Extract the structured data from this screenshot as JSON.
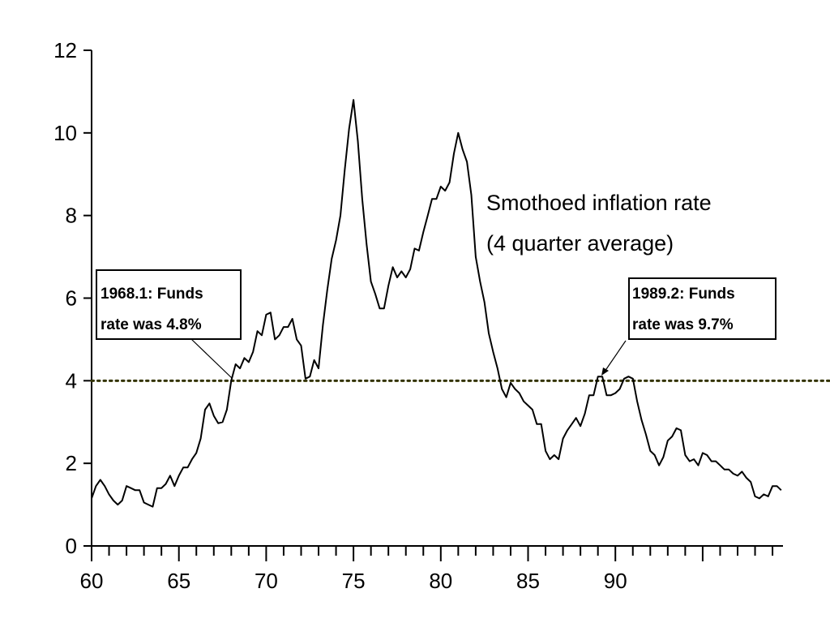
{
  "chart_data": {
    "type": "line",
    "title": "",
    "xlabel": "",
    "ylabel": "",
    "xlim": [
      60,
      99.6
    ],
    "ylim": [
      0,
      12
    ],
    "grid": false,
    "x_ticks": [
      60,
      65,
      70,
      75,
      80,
      85,
      90
    ],
    "y_ticks": [
      0,
      2,
      4,
      6,
      8,
      10,
      12
    ],
    "reference_line": {
      "y": 4,
      "style": "dotted",
      "color": "#333300"
    },
    "series": [
      {
        "name": "Smothoed inflation rate (4 quarter average)",
        "color": "#000000",
        "x": [
          60.0,
          60.25,
          60.5,
          60.75,
          61.0,
          61.25,
          61.5,
          61.75,
          62.0,
          62.25,
          62.5,
          62.75,
          63.0,
          63.25,
          63.5,
          63.75,
          64.0,
          64.25,
          64.5,
          64.75,
          65.0,
          65.25,
          65.5,
          65.75,
          66.0,
          66.25,
          66.5,
          66.75,
          67.0,
          67.25,
          67.5,
          67.75,
          68.0,
          68.25,
          68.5,
          68.75,
          69.0,
          69.25,
          69.5,
          69.75,
          70.0,
          70.25,
          70.5,
          70.75,
          71.0,
          71.25,
          71.5,
          71.75,
          72.0,
          72.25,
          72.5,
          72.75,
          73.0,
          73.25,
          73.5,
          73.75,
          74.0,
          74.25,
          74.5,
          74.75,
          75.0,
          75.25,
          75.5,
          75.75,
          76.0,
          76.25,
          76.5,
          76.75,
          77.0,
          77.25,
          77.5,
          77.75,
          78.0,
          78.25,
          78.5,
          78.75,
          79.0,
          79.25,
          79.5,
          79.75,
          80.0,
          80.25,
          80.5,
          80.75,
          81.0,
          81.25,
          81.5,
          81.75,
          82.0,
          82.25,
          82.5,
          82.75,
          83.0,
          83.25,
          83.5,
          83.75,
          84.0,
          84.25,
          84.5,
          84.75,
          85.0,
          85.25,
          85.5,
          85.75,
          86.0,
          86.25,
          86.5,
          86.75,
          87.0,
          87.25,
          87.5,
          87.75,
          88.0,
          88.25,
          88.5,
          88.75,
          89.0,
          89.25,
          89.5,
          89.75,
          90.0,
          90.25,
          90.5,
          90.75,
          91.0,
          91.25,
          91.5,
          91.75,
          92.0,
          92.25,
          92.5,
          92.75,
          93.0,
          93.25,
          93.5,
          93.75,
          94.0,
          94.25,
          94.5,
          94.75,
          95.0,
          95.25,
          95.5,
          95.75,
          96.0,
          96.25,
          96.5,
          96.75,
          97.0,
          97.25,
          97.5,
          97.75,
          98.0,
          98.25,
          98.5,
          98.75,
          99.0,
          99.25,
          99.5
        ],
        "values": [
          1.15,
          1.45,
          1.6,
          1.45,
          1.25,
          1.1,
          1.0,
          1.1,
          1.45,
          1.4,
          1.35,
          1.35,
          1.05,
          1.0,
          0.95,
          1.4,
          1.4,
          1.5,
          1.7,
          1.45,
          1.7,
          1.9,
          1.9,
          2.1,
          2.25,
          2.6,
          3.3,
          3.45,
          3.15,
          2.97,
          3.0,
          3.3,
          4.0,
          4.4,
          4.3,
          4.55,
          4.45,
          4.7,
          5.2,
          5.1,
          5.6,
          5.65,
          5.0,
          5.1,
          5.3,
          5.3,
          5.5,
          5.0,
          4.85,
          4.05,
          4.1,
          4.5,
          4.3,
          5.35,
          6.2,
          6.95,
          7.4,
          8.0,
          9.1,
          10.1,
          10.8,
          9.8,
          8.4,
          7.3,
          6.4,
          6.1,
          5.75,
          5.75,
          6.3,
          6.75,
          6.5,
          6.65,
          6.5,
          6.7,
          7.2,
          7.15,
          7.6,
          8.0,
          8.4,
          8.4,
          8.7,
          8.6,
          8.8,
          9.5,
          10.0,
          9.6,
          9.3,
          8.5,
          7.0,
          6.4,
          5.9,
          5.15,
          4.7,
          4.3,
          3.8,
          3.6,
          3.95,
          3.8,
          3.7,
          3.5,
          3.4,
          3.3,
          2.95,
          2.95,
          2.3,
          2.1,
          2.2,
          2.1,
          2.6,
          2.8,
          2.95,
          3.1,
          2.9,
          3.2,
          3.65,
          3.65,
          4.1,
          4.1,
          3.65,
          3.65,
          3.7,
          3.8,
          4.05,
          4.1,
          4.05,
          3.5,
          3.05,
          2.7,
          2.3,
          2.2,
          1.95,
          2.15,
          2.55,
          2.65,
          2.85,
          2.8,
          2.2,
          2.05,
          2.1,
          1.95,
          2.25,
          2.2,
          2.05,
          2.05,
          1.95,
          1.85,
          1.85,
          1.75,
          1.7,
          1.8,
          1.65,
          1.55,
          1.2,
          1.15,
          1.25,
          1.2,
          1.45,
          1.45,
          1.35
        ]
      }
    ],
    "annotations": {
      "series_label_line1": "Smothoed inflation rate",
      "series_label_line2": "(4 quarter average)",
      "callout_1968_line1": "1968.1: Funds",
      "callout_1968_line2": "rate was 4.8%",
      "callout_1989_line1": "1989.2: Funds",
      "callout_1989_line2": "rate was 9.7%"
    }
  }
}
